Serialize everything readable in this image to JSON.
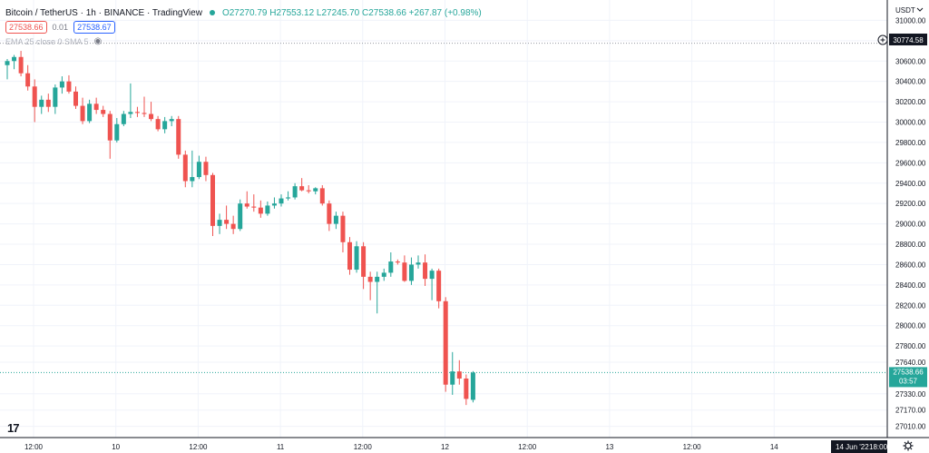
{
  "header": {
    "title": "Bitcoin / TetherUS · 1h · BINANCE · TradingView",
    "ohlc": "O27270.79 H27553.12 L27245.70 C27538.66 +267.87 (+0.98%)"
  },
  "trade": {
    "sell": "27538.66",
    "spread": "0.01",
    "buy": "27538.67"
  },
  "indicator": {
    "label": "EMA 25 close 0 SMA 5"
  },
  "logo": "17",
  "currency": "USDT",
  "colors": {
    "up": "#26a69a",
    "down": "#ef5350",
    "grid": "#f0f3fa",
    "axis": "#131722"
  },
  "chart_data": {
    "type": "candlestick",
    "symbol": "Bitcoin / TetherUS",
    "interval": "1h",
    "exchange": "BINANCE",
    "ylim": [
      26900,
      31200
    ],
    "y_ticks": [
      31000,
      30800,
      30600,
      30400,
      30200,
      30000,
      29800,
      29600,
      29400,
      29200,
      29000,
      28800,
      28600,
      28400,
      28200,
      28000,
      27800,
      27640,
      27330,
      27170,
      27010
    ],
    "x_tick_labels": [
      "12:00",
      "10",
      "12:00",
      "11",
      "12:00",
      "12",
      "12:00",
      "13",
      "12:00",
      "14"
    ],
    "marked_price": "30774.58",
    "last_price": "27538.66",
    "countdown": "03:57",
    "cursor_date": "14 Jun '22",
    "cursor_time": "18:00",
    "candles": [
      {
        "o": 30560,
        "h": 30620,
        "l": 30420,
        "c": 30600
      },
      {
        "o": 30600,
        "h": 30660,
        "l": 30520,
        "c": 30640
      },
      {
        "o": 30640,
        "h": 30700,
        "l": 30450,
        "c": 30480
      },
      {
        "o": 30480,
        "h": 30560,
        "l": 30310,
        "c": 30350
      },
      {
        "o": 30350,
        "h": 30420,
        "l": 30000,
        "c": 30150
      },
      {
        "o": 30150,
        "h": 30260,
        "l": 30080,
        "c": 30220
      },
      {
        "o": 30220,
        "h": 30280,
        "l": 30100,
        "c": 30150
      },
      {
        "o": 30150,
        "h": 30370,
        "l": 30080,
        "c": 30340
      },
      {
        "o": 30340,
        "h": 30450,
        "l": 30280,
        "c": 30400
      },
      {
        "o": 30400,
        "h": 30460,
        "l": 30280,
        "c": 30300
      },
      {
        "o": 30300,
        "h": 30350,
        "l": 30130,
        "c": 30160
      },
      {
        "o": 30160,
        "h": 30240,
        "l": 29980,
        "c": 30010
      },
      {
        "o": 30010,
        "h": 30220,
        "l": 29990,
        "c": 30180
      },
      {
        "o": 30180,
        "h": 30240,
        "l": 30080,
        "c": 30120
      },
      {
        "o": 30120,
        "h": 30160,
        "l": 30050,
        "c": 30080
      },
      {
        "o": 30080,
        "h": 30110,
        "l": 29640,
        "c": 29820
      },
      {
        "o": 29820,
        "h": 30040,
        "l": 29800,
        "c": 29980
      },
      {
        "o": 29980,
        "h": 30110,
        "l": 29960,
        "c": 30080
      },
      {
        "o": 30080,
        "h": 30380,
        "l": 30040,
        "c": 30100
      },
      {
        "o": 30100,
        "h": 30150,
        "l": 30050,
        "c": 30090
      },
      {
        "o": 30090,
        "h": 30250,
        "l": 30050,
        "c": 30080
      },
      {
        "o": 30080,
        "h": 30200,
        "l": 30010,
        "c": 30030
      },
      {
        "o": 30030,
        "h": 30060,
        "l": 29910,
        "c": 29930
      },
      {
        "o": 29930,
        "h": 30050,
        "l": 29890,
        "c": 30010
      },
      {
        "o": 30010,
        "h": 30060,
        "l": 29960,
        "c": 30030
      },
      {
        "o": 30030,
        "h": 30060,
        "l": 29640,
        "c": 29680
      },
      {
        "o": 29680,
        "h": 29720,
        "l": 29360,
        "c": 29420
      },
      {
        "o": 29420,
        "h": 29720,
        "l": 29360,
        "c": 29460
      },
      {
        "o": 29460,
        "h": 29670,
        "l": 29440,
        "c": 29610
      },
      {
        "o": 29610,
        "h": 29660,
        "l": 29420,
        "c": 29480
      },
      {
        "o": 29480,
        "h": 29500,
        "l": 28880,
        "c": 28980
      },
      {
        "o": 28980,
        "h": 29100,
        "l": 28900,
        "c": 29040
      },
      {
        "o": 29040,
        "h": 29180,
        "l": 28950,
        "c": 29000
      },
      {
        "o": 29000,
        "h": 29080,
        "l": 28900,
        "c": 28950
      },
      {
        "o": 28950,
        "h": 29240,
        "l": 28930,
        "c": 29200
      },
      {
        "o": 29200,
        "h": 29320,
        "l": 29150,
        "c": 29170
      },
      {
        "o": 29170,
        "h": 29290,
        "l": 29120,
        "c": 29160
      },
      {
        "o": 29160,
        "h": 29230,
        "l": 29060,
        "c": 29100
      },
      {
        "o": 29100,
        "h": 29220,
        "l": 29080,
        "c": 29180
      },
      {
        "o": 29180,
        "h": 29260,
        "l": 29150,
        "c": 29200
      },
      {
        "o": 29200,
        "h": 29290,
        "l": 29170,
        "c": 29250
      },
      {
        "o": 29250,
        "h": 29320,
        "l": 29230,
        "c": 29260
      },
      {
        "o": 29260,
        "h": 29400,
        "l": 29240,
        "c": 29370
      },
      {
        "o": 29370,
        "h": 29450,
        "l": 29320,
        "c": 29330
      },
      {
        "o": 29330,
        "h": 29380,
        "l": 29300,
        "c": 29320
      },
      {
        "o": 29320,
        "h": 29360,
        "l": 29290,
        "c": 29350
      },
      {
        "o": 29350,
        "h": 29380,
        "l": 29180,
        "c": 29200
      },
      {
        "o": 29200,
        "h": 29230,
        "l": 28930,
        "c": 29000
      },
      {
        "o": 29000,
        "h": 29120,
        "l": 28950,
        "c": 29080
      },
      {
        "o": 29080,
        "h": 29120,
        "l": 28720,
        "c": 28820
      },
      {
        "o": 28820,
        "h": 28870,
        "l": 28500,
        "c": 28550
      },
      {
        "o": 28550,
        "h": 28830,
        "l": 28520,
        "c": 28780
      },
      {
        "o": 28780,
        "h": 28820,
        "l": 28360,
        "c": 28480
      },
      {
        "o": 28480,
        "h": 28530,
        "l": 28250,
        "c": 28430
      },
      {
        "o": 28430,
        "h": 28530,
        "l": 28120,
        "c": 28480
      },
      {
        "o": 28480,
        "h": 28560,
        "l": 28440,
        "c": 28520
      },
      {
        "o": 28520,
        "h": 28720,
        "l": 28480,
        "c": 28630
      },
      {
        "o": 28630,
        "h": 28650,
        "l": 28600,
        "c": 28620
      },
      {
        "o": 28620,
        "h": 28690,
        "l": 28430,
        "c": 28440
      },
      {
        "o": 28440,
        "h": 28670,
        "l": 28400,
        "c": 28600
      },
      {
        "o": 28600,
        "h": 28690,
        "l": 28560,
        "c": 28620
      },
      {
        "o": 28620,
        "h": 28700,
        "l": 28390,
        "c": 28460
      },
      {
        "o": 28460,
        "h": 28560,
        "l": 28250,
        "c": 28540
      },
      {
        "o": 28540,
        "h": 28560,
        "l": 28170,
        "c": 28240
      },
      {
        "o": 28240,
        "h": 28280,
        "l": 27350,
        "c": 27420
      },
      {
        "o": 27420,
        "h": 27740,
        "l": 27320,
        "c": 27550
      },
      {
        "o": 27550,
        "h": 27660,
        "l": 27420,
        "c": 27480
      },
      {
        "o": 27480,
        "h": 27520,
        "l": 27220,
        "c": 27280
      },
      {
        "o": 27270.79,
        "h": 27553.12,
        "l": 27245.7,
        "c": 27538.66
      }
    ]
  }
}
